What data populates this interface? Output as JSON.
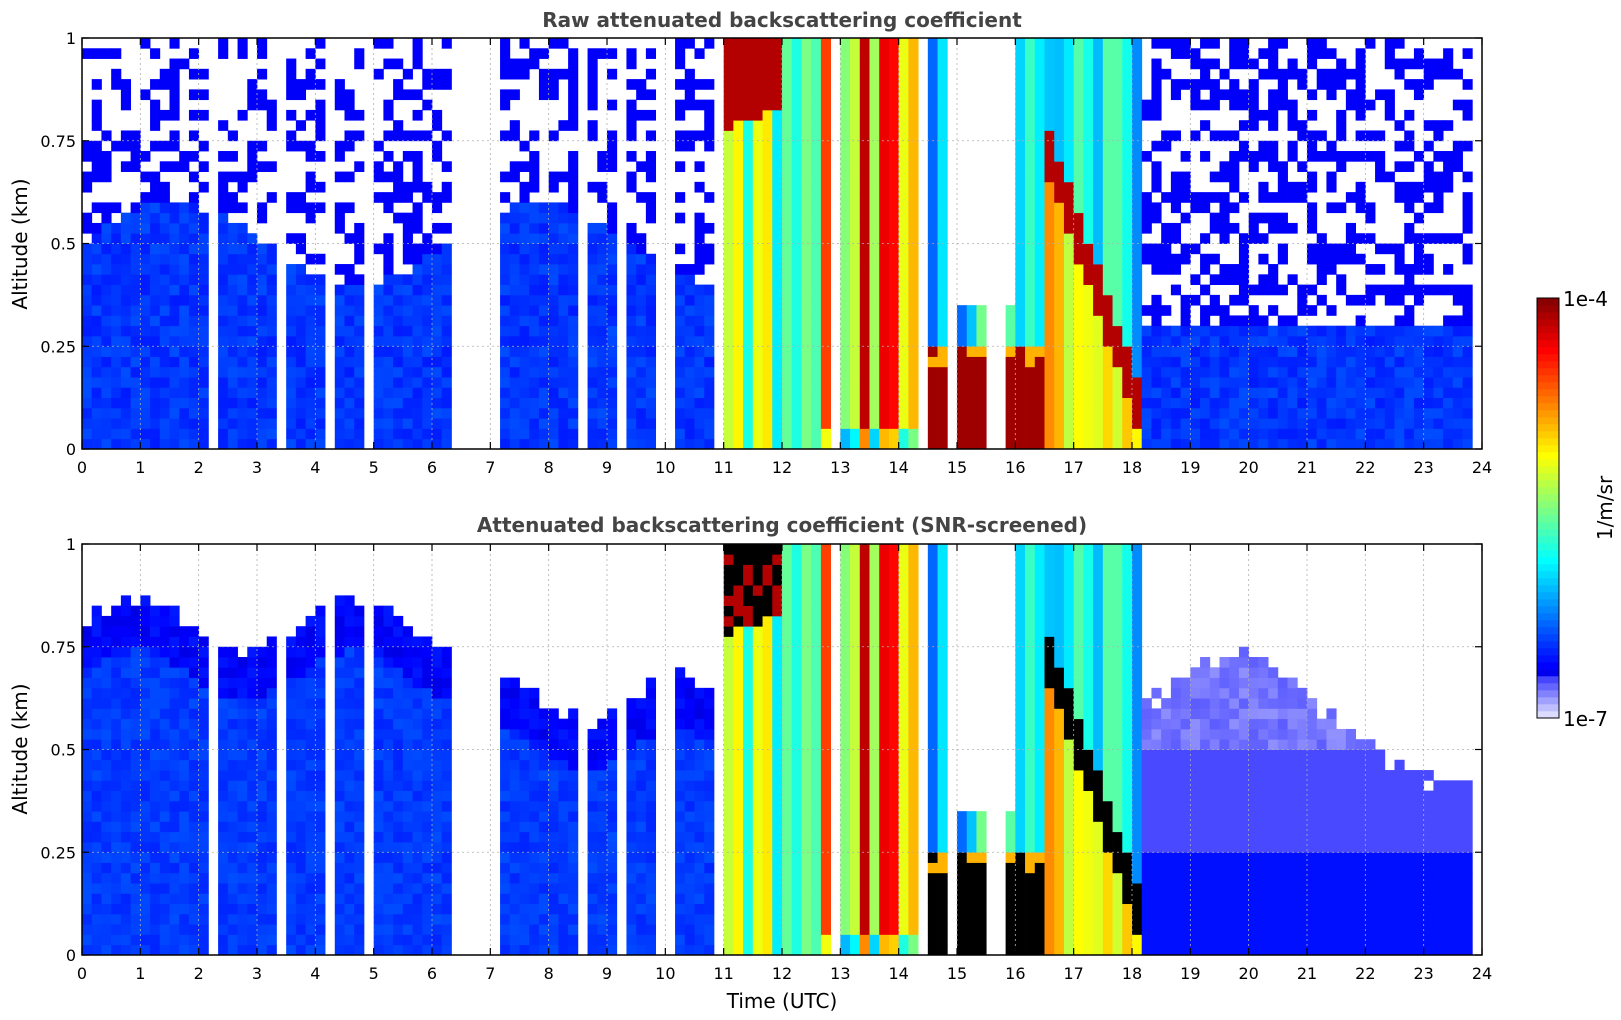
{
  "chart_data": [
    {
      "type": "heatmap",
      "title": "Raw attenuated backscattering coefficient",
      "xlabel": "",
      "ylabel": "Altitude (km)",
      "xlim": [
        0,
        24
      ],
      "ylim": [
        0,
        1
      ],
      "xticks": [
        "0",
        "1",
        "2",
        "3",
        "4",
        "5",
        "6",
        "7",
        "8",
        "9",
        "10",
        "11",
        "12",
        "13",
        "14",
        "15",
        "16",
        "17",
        "18",
        "19",
        "20",
        "21",
        "22",
        "23",
        "24"
      ],
      "yticks": [
        "0",
        "0.25",
        "0.5",
        "0.75",
        "1"
      ],
      "grid": true,
      "colorscale": "jet",
      "log_scale": true,
      "screened": false,
      "features": [
        {
          "name": "clear-air boundary layer",
          "x": [
            0,
            11
          ],
          "y": [
            0,
            0.5
          ],
          "level": 0.15
        },
        {
          "name": "cloud top",
          "x": [
            11,
            12
          ],
          "y": [
            0.8,
            1
          ],
          "level": 0.95
        },
        {
          "name": "thick cloud / precipitation",
          "x": [
            12.7,
            14.3
          ],
          "y": [
            0,
            1
          ],
          "level": 0.8
        },
        {
          "name": "low cloud",
          "x": [
            14.5,
            16.5
          ],
          "y": [
            0,
            0.2
          ],
          "level": 0.97
        },
        {
          "name": "descending cloud layer",
          "x": [
            16.5,
            18
          ],
          "y": [
            0.15,
            0.75
          ],
          "level": 0.95
        },
        {
          "name": "clear-air boundary layer",
          "x": [
            18,
            23.8
          ],
          "y": [
            0,
            0.3
          ],
          "level": 0.12
        }
      ]
    },
    {
      "type": "heatmap",
      "title": "Attenuated backscattering coefficient (SNR-screened)",
      "xlabel": "Time (UTC)",
      "ylabel": "Altitude (km)",
      "xlim": [
        0,
        24
      ],
      "ylim": [
        0,
        1
      ],
      "xticks": [
        "0",
        "1",
        "2",
        "3",
        "4",
        "5",
        "6",
        "7",
        "8",
        "9",
        "10",
        "11",
        "12",
        "13",
        "14",
        "15",
        "16",
        "17",
        "18",
        "19",
        "20",
        "21",
        "22",
        "23",
        "24"
      ],
      "yticks": [
        "0",
        "0.25",
        "0.5",
        "0.75",
        "1"
      ],
      "grid": true,
      "colorscale": "jet",
      "log_scale": true,
      "screened": true,
      "features": [
        {
          "name": "boundary layer top",
          "x": [
            0,
            11
          ],
          "y": [
            0.5,
            0.8
          ],
          "level": 0.15
        },
        {
          "name": "cloud top (saturated)",
          "x": [
            11,
            12
          ],
          "y": [
            0.8,
            1
          ],
          "level": 1.0
        },
        {
          "name": "thick cloud / precipitation",
          "x": [
            12.7,
            14.3
          ],
          "y": [
            0,
            1
          ],
          "level": 0.8
        },
        {
          "name": "low cloud (saturated)",
          "x": [
            14.5,
            16.5
          ],
          "y": [
            0.05,
            0.25
          ],
          "level": 1.0
        },
        {
          "name": "descending cloud layer (saturated)",
          "x": [
            16.5,
            18
          ],
          "y": [
            0.15,
            0.75
          ],
          "level": 1.0
        },
        {
          "name": "aerosol layer",
          "x": [
            18,
            23.8
          ],
          "y": [
            0,
            0.7
          ],
          "level": 0.08
        }
      ]
    }
  ],
  "colorbar": {
    "max_label": "1e-4",
    "min_label": "1e-7",
    "unit_label": "1/m/sr",
    "saturated_color": "#000000"
  }
}
